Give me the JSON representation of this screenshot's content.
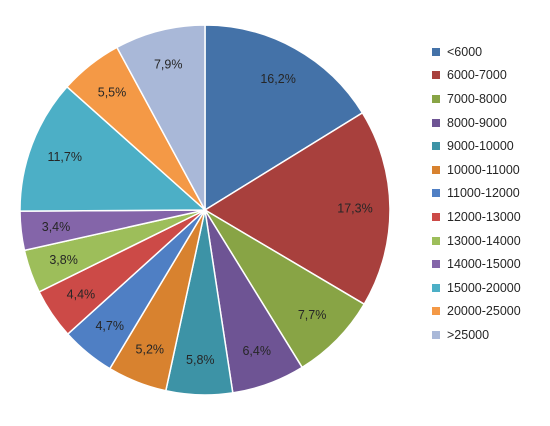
{
  "chart_data": {
    "type": "pie",
    "value_format": "{v}%",
    "decimal_separator": ",",
    "legend_position": "right",
    "slices": [
      {
        "label": "<6000",
        "value": 16.2,
        "color": "#4472A8"
      },
      {
        "label": "6000-7000",
        "value": 17.3,
        "color": "#A8403D"
      },
      {
        "label": "7000-8000",
        "value": 7.7,
        "color": "#88A445"
      },
      {
        "label": "8000-9000",
        "value": 6.4,
        "color": "#6E5494"
      },
      {
        "label": "9000-10000",
        "value": 5.8,
        "color": "#3D93A6"
      },
      {
        "label": "10000-11000",
        "value": 5.2,
        "color": "#D8822F"
      },
      {
        "label": "11000-12000",
        "value": 4.7,
        "color": "#4F7FC4"
      },
      {
        "label": "12000-13000",
        "value": 4.4,
        "color": "#CC4A47"
      },
      {
        "label": "13000-14000",
        "value": 3.8,
        "color": "#9DBE5A"
      },
      {
        "label": "14000-15000",
        "value": 3.4,
        "color": "#8465A9"
      },
      {
        "label": "15000-20000",
        "value": 11.7,
        "color": "#4CAFC6"
      },
      {
        "label": "20000-25000",
        "value": 5.5,
        "color": "#F49946"
      },
      {
        "label": ">25000",
        "value": 7.9,
        "color": "#A9B8D8"
      }
    ]
  }
}
